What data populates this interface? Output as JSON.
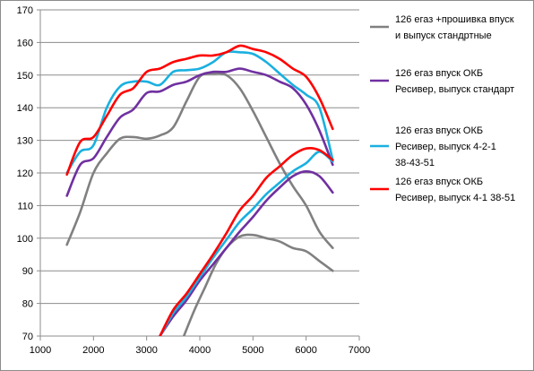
{
  "chart_data": {
    "type": "line",
    "title": "",
    "xlabel": "",
    "ylabel": "",
    "xlim": [
      1000,
      7000
    ],
    "ylim": [
      70,
      170
    ],
    "x_ticks": [
      1000,
      2000,
      3000,
      4000,
      5000,
      6000,
      7000
    ],
    "y_ticks": [
      70,
      80,
      90,
      100,
      110,
      120,
      130,
      140,
      150,
      160,
      170
    ],
    "grid": "horizontal",
    "legend_position": "right",
    "series": [
      {
        "name": "126 егаз +прошивка впуск и выпуск стандртные",
        "legend_lines": [
          "126 егаз +прошивка впуск",
          "и выпуск стандртные"
        ],
        "color": "#808080",
        "power": [
          [
            1500,
            98
          ],
          [
            1750,
            108
          ],
          [
            2000,
            120
          ],
          [
            2250,
            126
          ],
          [
            2500,
            130.5
          ],
          [
            2750,
            131
          ],
          [
            3000,
            130.5
          ],
          [
            3250,
            131.5
          ],
          [
            3500,
            134
          ],
          [
            3750,
            142
          ],
          [
            4000,
            149.5
          ],
          [
            4250,
            150.5
          ],
          [
            4500,
            150
          ],
          [
            4750,
            146
          ],
          [
            5000,
            139
          ],
          [
            5250,
            131
          ],
          [
            5500,
            123
          ],
          [
            5750,
            116
          ],
          [
            6000,
            110
          ],
          [
            6250,
            102
          ],
          [
            6500,
            97
          ]
        ],
        "torque": [
          [
            3700,
            70
          ],
          [
            3900,
            78
          ],
          [
            4100,
            85
          ],
          [
            4300,
            92
          ],
          [
            4500,
            97
          ],
          [
            4750,
            100.5
          ],
          [
            5000,
            101
          ],
          [
            5250,
            100
          ],
          [
            5500,
            99
          ],
          [
            5750,
            97
          ],
          [
            6000,
            96
          ],
          [
            6250,
            93
          ],
          [
            6500,
            90
          ]
        ]
      },
      {
        "name": "126 егаз впуск ОКБ Ресивер, выпуск стандарт",
        "legend_lines": [
          "126 егаз впуск ОКБ",
          "Ресивер, выпуск стандарт"
        ],
        "color": "#7030a0",
        "power": [
          [
            1500,
            113
          ],
          [
            1750,
            122.5
          ],
          [
            2000,
            124.5
          ],
          [
            2250,
            131
          ],
          [
            2500,
            137
          ],
          [
            2750,
            139.5
          ],
          [
            3000,
            144.5
          ],
          [
            3250,
            145
          ],
          [
            3500,
            147
          ],
          [
            3750,
            148
          ],
          [
            4000,
            150
          ],
          [
            4250,
            151
          ],
          [
            4500,
            151
          ],
          [
            4750,
            152
          ],
          [
            5000,
            151
          ],
          [
            5250,
            150
          ],
          [
            5500,
            148
          ],
          [
            5750,
            146
          ],
          [
            6000,
            141
          ],
          [
            6250,
            133
          ],
          [
            6500,
            122.5
          ]
        ],
        "torque": [
          [
            3250,
            70
          ],
          [
            3500,
            76
          ],
          [
            3750,
            81
          ],
          [
            4000,
            87
          ],
          [
            4250,
            92
          ],
          [
            4500,
            97
          ],
          [
            4750,
            102
          ],
          [
            5000,
            106.5
          ],
          [
            5250,
            111.5
          ],
          [
            5500,
            115.5
          ],
          [
            5750,
            119
          ],
          [
            6000,
            120.5
          ],
          [
            6250,
            119
          ],
          [
            6500,
            114
          ]
        ]
      },
      {
        "name": "126 егаз впуск ОКБ Ресивер, выпуск 4-2-1 38-43-51",
        "legend_lines": [
          "126 егаз впуск ОКБ",
          "Ресивер, выпуск 4-2-1",
          "38-43-51"
        ],
        "color": "#1ab0e0",
        "power": [
          [
            1500,
            120
          ],
          [
            1750,
            126.5
          ],
          [
            2000,
            128.5
          ],
          [
            2250,
            140
          ],
          [
            2500,
            146.5
          ],
          [
            2750,
            148
          ],
          [
            3000,
            148
          ],
          [
            3250,
            147
          ],
          [
            3500,
            151
          ],
          [
            3750,
            151.5
          ],
          [
            4000,
            152
          ],
          [
            4250,
            154
          ],
          [
            4500,
            157
          ],
          [
            4750,
            157
          ],
          [
            5000,
            156.5
          ],
          [
            5250,
            154
          ],
          [
            5500,
            150.5
          ],
          [
            5750,
            147
          ],
          [
            6000,
            144
          ],
          [
            6250,
            140
          ],
          [
            6500,
            124
          ]
        ],
        "torque": [
          [
            3250,
            70
          ],
          [
            3500,
            77
          ],
          [
            3750,
            82
          ],
          [
            4000,
            88
          ],
          [
            4250,
            94
          ],
          [
            4500,
            99.5
          ],
          [
            4750,
            105
          ],
          [
            5000,
            109
          ],
          [
            5250,
            113.5
          ],
          [
            5500,
            117
          ],
          [
            5750,
            120.5
          ],
          [
            6000,
            123
          ],
          [
            6250,
            126.5
          ],
          [
            6500,
            123.5
          ]
        ]
      },
      {
        "name": "126 егаз впуск ОКБ Ресивер, выпуск 4-1 38-51",
        "legend_lines": [
          "126 егаз впуск ОКБ",
          "Ресивер, выпуск 4-1 38-51"
        ],
        "color": "#ff0000",
        "power": [
          [
            1500,
            119.5
          ],
          [
            1750,
            129.5
          ],
          [
            2000,
            131
          ],
          [
            2250,
            137.5
          ],
          [
            2500,
            144
          ],
          [
            2750,
            146
          ],
          [
            3000,
            151
          ],
          [
            3250,
            152
          ],
          [
            3500,
            154
          ],
          [
            3750,
            155
          ],
          [
            4000,
            156
          ],
          [
            4250,
            156
          ],
          [
            4500,
            157
          ],
          [
            4750,
            159
          ],
          [
            5000,
            158
          ],
          [
            5250,
            157
          ],
          [
            5500,
            155
          ],
          [
            5750,
            152
          ],
          [
            6000,
            149.5
          ],
          [
            6250,
            143
          ],
          [
            6500,
            133.5
          ]
        ],
        "torque": [
          [
            3250,
            70
          ],
          [
            3500,
            78
          ],
          [
            3750,
            83
          ],
          [
            4000,
            89
          ],
          [
            4250,
            95
          ],
          [
            4500,
            101.5
          ],
          [
            4750,
            108.5
          ],
          [
            5000,
            113
          ],
          [
            5250,
            118.5
          ],
          [
            5500,
            122
          ],
          [
            5750,
            125.5
          ],
          [
            6000,
            127.5
          ],
          [
            6250,
            127
          ],
          [
            6500,
            124
          ]
        ]
      }
    ]
  }
}
